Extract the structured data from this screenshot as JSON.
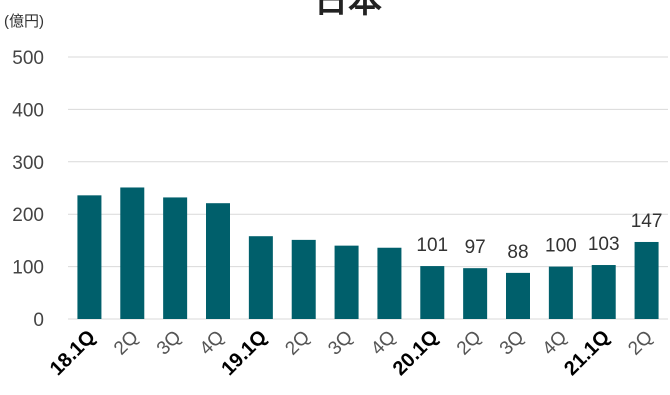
{
  "chart_data": {
    "type": "bar",
    "title": "日本",
    "unit_label": "(億円)",
    "categories": [
      "18.1Q",
      "2Q",
      "3Q",
      "4Q",
      "19.1Q",
      "2Q",
      "3Q",
      "4Q",
      "20.1Q",
      "2Q",
      "3Q",
      "4Q",
      "21.1Q",
      "2Q"
    ],
    "bold_categories": [
      "18.1Q",
      "19.1Q",
      "20.1Q",
      "21.1Q"
    ],
    "series": [
      {
        "values": [
          236,
          251,
          232,
          221,
          158,
          151,
          140,
          136,
          101,
          97,
          88,
          100,
          103,
          147
        ],
        "data_labels": [
          null,
          null,
          null,
          null,
          null,
          null,
          null,
          null,
          "101",
          "97",
          "88",
          "100",
          "103",
          "147"
        ]
      }
    ],
    "ylim": [
      0,
      500
    ],
    "yticks": [
      0,
      100,
      200,
      300,
      400,
      500
    ],
    "grid": true,
    "bar_color": "#005f6b"
  }
}
